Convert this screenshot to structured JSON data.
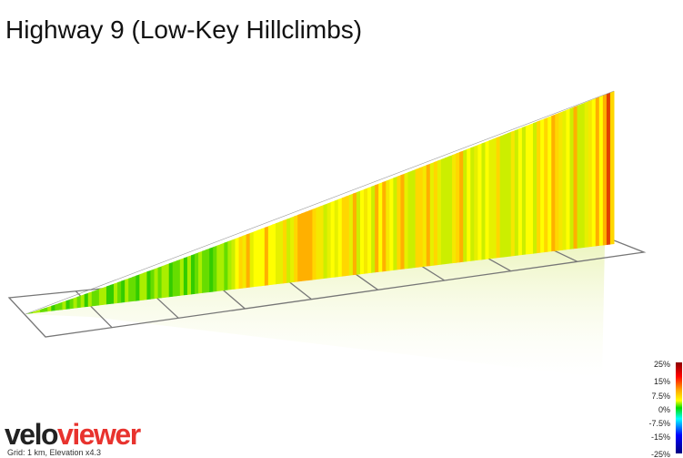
{
  "title": "Highway 9 (Low-Key Hillclimbs)",
  "logo": {
    "velo": "velo",
    "viewer": "viewer"
  },
  "caption": "Grid: 1 km, Elevation x4.3",
  "legend": {
    "labels": [
      "25%",
      "15%",
      "7.5%",
      "0%",
      "-7.5%",
      "-15%",
      "-25%"
    ]
  }
}
